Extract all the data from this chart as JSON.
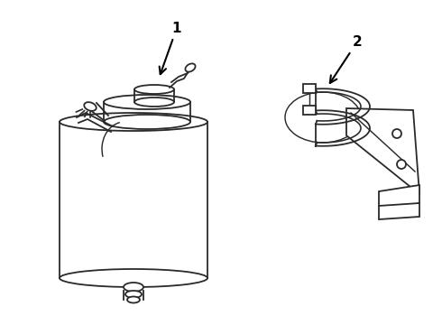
{
  "background_color": "#ffffff",
  "line_color": "#2a2a2a",
  "line_width": 1.3,
  "label_color": "#000000",
  "label_fontsize": 11,
  "label_fontweight": "bold",
  "arrow_color": "#000000",
  "part1_label": "1",
  "part2_label": "2",
  "figsize": [
    4.9,
    3.6
  ],
  "dpi": 100
}
